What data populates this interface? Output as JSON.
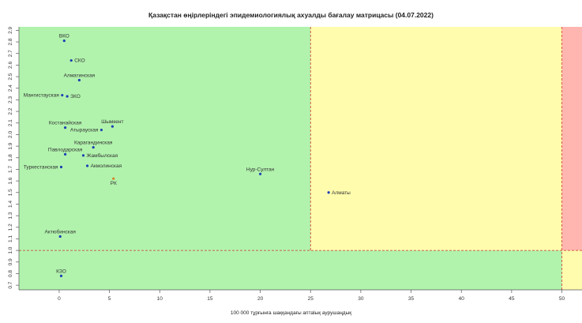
{
  "chart_data": {
    "type": "scatter",
    "title": "Қазақстан өңірлеріндегі эпидемиологиялық ахуалды бағалау матрицасы  (04.07.2022)",
    "xlabel": "100 000 тұрғынға шаққандағы аптаlық аурушаңдық",
    "ylabel": "",
    "xlim": [
      -4,
      52
    ],
    "ylim": [
      0.66,
      2.93
    ],
    "x_ticks": [
      "0",
      "5",
      "10",
      "15",
      "20",
      "25",
      "30",
      "35",
      "40",
      "45",
      "50"
    ],
    "y_ticks": [
      "0.7",
      "0.8",
      "0.9",
      "1.0",
      "1.1",
      "1.2",
      "1.3",
      "1.4",
      "1.5",
      "1.6",
      "1.7",
      "1.8",
      "1.9",
      "2.0",
      "2.1",
      "2.2",
      "2.3",
      "2.4",
      "2.5",
      "2.6",
      "2.7",
      "2.8",
      "2.9"
    ],
    "thresholds": {
      "x": [
        25,
        50
      ],
      "y": [
        1.0
      ]
    },
    "zone_colors": {
      "green": "#b1f3ad",
      "yellow": "#fffcad",
      "red": "#ffb6b0",
      "threshold_line": "#d0342c",
      "point": "#1f3fb4",
      "highlight_point": "#d4832a"
    },
    "points": [
      {
        "name": "ВКО",
        "x": 0.5,
        "y": 2.81,
        "anchor": "above",
        "highlight": false
      },
      {
        "name": "СКО",
        "x": 1.2,
        "y": 2.64,
        "anchor": "right",
        "highlight": false
      },
      {
        "name": "Алматинская",
        "x": 2.0,
        "y": 2.47,
        "anchor": "above",
        "highlight": false
      },
      {
        "name": "Мангистауская",
        "x": 0.3,
        "y": 2.34,
        "anchor": "left",
        "highlight": false
      },
      {
        "name": "ЗКО",
        "x": 0.8,
        "y": 2.33,
        "anchor": "right",
        "highlight": false
      },
      {
        "name": "Костанайская",
        "x": 0.6,
        "y": 2.06,
        "anchor": "above",
        "highlight": false
      },
      {
        "name": "Шымкент",
        "x": 5.3,
        "y": 2.07,
        "anchor": "above",
        "highlight": false
      },
      {
        "name": "Атырауская",
        "x": 4.2,
        "y": 2.04,
        "anchor": "left",
        "highlight": false
      },
      {
        "name": "Карагандинская",
        "x": 3.4,
        "y": 1.89,
        "anchor": "above",
        "highlight": false
      },
      {
        "name": "Павлодарская",
        "x": 0.6,
        "y": 1.83,
        "anchor": "above",
        "highlight": false
      },
      {
        "name": "Жамбылская",
        "x": 2.4,
        "y": 1.82,
        "anchor": "right",
        "highlight": false
      },
      {
        "name": "Акмолинская",
        "x": 2.8,
        "y": 1.73,
        "anchor": "right",
        "highlight": false
      },
      {
        "name": "Туркестанская",
        "x": 0.2,
        "y": 1.72,
        "anchor": "left",
        "highlight": false
      },
      {
        "name": "Нур-Султан",
        "x": 20.0,
        "y": 1.66,
        "anchor": "above",
        "highlight": false
      },
      {
        "name": "РК",
        "x": 5.4,
        "y": 1.62,
        "anchor": "below",
        "highlight": true
      },
      {
        "name": "Алматы",
        "x": 26.8,
        "y": 1.5,
        "anchor": "right",
        "highlight": false
      },
      {
        "name": "Актюбинская",
        "x": 0.1,
        "y": 1.12,
        "anchor": "above",
        "highlight": false
      },
      {
        "name": "КЗО",
        "x": 0.2,
        "y": 0.78,
        "anchor": "above",
        "highlight": false
      }
    ]
  }
}
